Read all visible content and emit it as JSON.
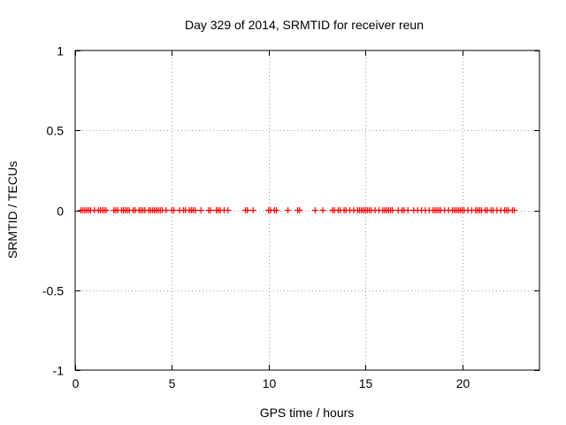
{
  "chart_data": {
    "type": "scatter",
    "title": "Day 329 of 2014, SRMTID for receiver reun",
    "xlabel": "GPS time / hours",
    "ylabel": "SRMTID / TECUs",
    "xlim": [
      0,
      24
    ],
    "ylim": [
      -1,
      1
    ],
    "xticks": [
      0,
      5,
      10,
      15,
      20
    ],
    "xtick_labels": [
      "0",
      "5",
      "10",
      "15",
      "20"
    ],
    "yticks": [
      -1,
      -0.5,
      0,
      0.5,
      1
    ],
    "ytick_labels": [
      "-1",
      "-0.5",
      "0",
      "0.5",
      "1"
    ],
    "grid": true,
    "marker": "plus",
    "series_color": "#ff0000",
    "series": [
      {
        "name": "SRMTID",
        "x": [
          0.3,
          0.4,
          0.5,
          0.6,
          0.7,
          0.8,
          1.0,
          1.2,
          1.3,
          1.4,
          1.5,
          1.6,
          2.0,
          2.1,
          2.2,
          2.4,
          2.5,
          2.6,
          2.7,
          2.8,
          3.0,
          3.1,
          3.3,
          3.4,
          3.5,
          3.6,
          3.8,
          3.9,
          4.0,
          4.1,
          4.2,
          4.3,
          4.4,
          4.5,
          4.7,
          5.0,
          5.1,
          5.4,
          5.6,
          5.7,
          5.9,
          6.0,
          6.1,
          6.2,
          6.5,
          6.9,
          7.0,
          7.3,
          7.4,
          7.5,
          7.7,
          7.9,
          8.8,
          8.9,
          9.2,
          10.0,
          10.1,
          10.3,
          10.4,
          11.0,
          11.5,
          11.6,
          12.4,
          12.8,
          13.3,
          13.4,
          13.6,
          13.7,
          13.9,
          14.0,
          14.2,
          14.4,
          14.6,
          14.7,
          14.8,
          14.9,
          15.0,
          15.1,
          15.2,
          15.3,
          15.5,
          15.7,
          15.9,
          16.0,
          16.1,
          16.2,
          16.3,
          16.4,
          16.7,
          16.9,
          17.0,
          17.2,
          17.5,
          17.7,
          17.9,
          18.1,
          18.3,
          18.5,
          18.6,
          18.7,
          18.8,
          18.9,
          19.1,
          19.3,
          19.5,
          19.6,
          19.7,
          19.8,
          19.9,
          20.0,
          20.1,
          20.3,
          20.5,
          20.7,
          20.8,
          20.9,
          21.0,
          21.2,
          21.3,
          21.5,
          21.6,
          21.8,
          22.0,
          22.2,
          22.3,
          22.4,
          22.6,
          22.7
        ],
        "y": [
          0,
          0,
          0,
          0,
          0,
          0,
          0,
          0,
          0,
          0,
          0,
          0,
          0,
          0,
          0,
          0,
          0,
          0,
          0,
          0,
          0,
          0,
          0,
          0,
          0,
          0,
          0,
          0,
          0,
          0,
          0,
          0,
          0,
          0,
          0,
          0,
          0,
          0,
          0,
          0,
          0,
          0,
          0,
          0,
          0,
          0,
          0,
          0,
          0,
          0,
          0,
          0,
          0,
          0,
          0,
          0,
          0,
          0,
          0,
          0,
          0,
          0,
          0,
          0,
          0,
          0,
          0,
          0,
          0,
          0,
          0,
          0,
          0,
          0,
          0,
          0,
          0,
          0,
          0,
          0,
          0,
          0,
          0,
          0,
          0,
          0,
          0,
          0,
          0,
          0,
          0,
          0,
          0,
          0,
          0,
          0,
          0,
          0,
          0,
          0,
          0,
          0,
          0,
          0,
          0,
          0,
          0,
          0,
          0,
          0,
          0,
          0,
          0,
          0,
          0,
          0,
          0,
          0,
          0,
          0,
          0,
          0,
          0,
          0,
          0,
          0,
          0,
          0
        ]
      }
    ]
  }
}
